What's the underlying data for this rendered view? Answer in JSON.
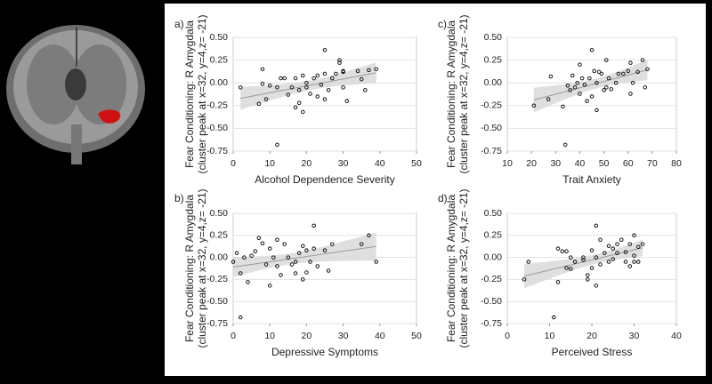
{
  "chart_data": [
    {
      "type": "scatter",
      "panel_label": "a)",
      "xlabel": "Alcohol  Dependence Severity",
      "ylabel": [
        "Fear Conditioning: R Amygdala",
        "(cluster peak at x=32, y=4,z= -21)"
      ],
      "x": [
        2,
        7,
        8,
        8,
        9,
        10,
        12,
        12,
        13,
        14,
        15,
        16,
        17,
        17,
        18,
        18,
        19,
        19,
        20,
        20,
        21,
        22,
        23,
        23,
        24,
        25,
        25,
        25,
        26,
        27,
        28,
        29,
        29,
        30,
        30,
        30,
        31,
        34,
        35,
        36,
        37,
        39
      ],
      "y": [
        -0.05,
        -0.23,
        0.15,
        -0.01,
        -0.18,
        -0.03,
        -0.68,
        -0.05,
        0.05,
        0.05,
        -0.13,
        -0.05,
        -0.27,
        0.05,
        -0.08,
        -0.22,
        -0.32,
        0.08,
        -0.05,
        0.0,
        -0.12,
        0.05,
        -0.15,
        0.08,
        -0.02,
        0.36,
        0.1,
        -0.18,
        -0.08,
        0.05,
        0.1,
        0.22,
        0.25,
        0.12,
        0.13,
        -0.05,
        -0.2,
        0.13,
        0.04,
        -0.08,
        0.14,
        0.15
      ],
      "xlim": [
        0,
        50
      ],
      "xticks": [
        0,
        10,
        20,
        30,
        40,
        50
      ],
      "ylim": [
        -0.75,
        0.5
      ],
      "yticks": [
        {
          "value": 0.5,
          "label": "0.50"
        },
        0.25,
        {
          "value": 0,
          "label": "0.00"
        },
        -0.25,
        {
          "value": -0.5,
          "label": "-0.50"
        },
        -0.75
      ],
      "color": "#000000",
      "grid": true
    },
    {
      "type": "scatter",
      "panel_label": "c)",
      "xlabel": "Trait Anxiety",
      "ylabel": [
        "Fear Conditioning: R Amygdala",
        "(cluster peak at x=32, y=4,z= -21)"
      ],
      "x": [
        21,
        27,
        28,
        33,
        34,
        35,
        36,
        37,
        38,
        39,
        40,
        40,
        41,
        42,
        43,
        44,
        45,
        45,
        46,
        47,
        47,
        48,
        49,
        50,
        51,
        51,
        52,
        53,
        55,
        56,
        58,
        60,
        61,
        61,
        62,
        64,
        66,
        67,
        68
      ],
      "y": [
        -0.25,
        -0.18,
        0.07,
        -0.26,
        -0.68,
        -0.03,
        -0.08,
        0.08,
        -0.05,
        0.0,
        0.2,
        -0.12,
        0.05,
        -0.02,
        -0.2,
        0.05,
        0.36,
        -0.15,
        0.13,
        0.0,
        -0.3,
        0.12,
        0.1,
        -0.08,
        0.25,
        -0.05,
        0.05,
        -0.07,
        0.0,
        0.1,
        0.1,
        0.13,
        0.22,
        -0.12,
        0.0,
        0.12,
        0.25,
        -0.05,
        0.15
      ],
      "xlim": [
        10,
        80
      ],
      "xticks": [
        10,
        20,
        30,
        40,
        50,
        60,
        70,
        80
      ],
      "ylim": [
        -0.75,
        0.5
      ],
      "yticks": [
        {
          "value": 0.5,
          "label": "0.50"
        },
        0.25,
        {
          "value": 0,
          "label": "0.00"
        },
        -0.25,
        {
          "value": -0.5,
          "label": "-0.50"
        },
        -0.75
      ],
      "color": "#000000",
      "grid": true
    },
    {
      "type": "scatter",
      "panel_label": "b)",
      "xlabel": "Depressive Symptoms",
      "ylabel": [
        "Fear Conditioning: R Amygdala",
        "(cluster peak at x=32, y=4,z= -21)"
      ],
      "x": [
        0,
        1,
        2,
        2,
        3,
        4,
        5,
        6,
        7,
        8,
        9,
        10,
        10,
        11,
        12,
        12,
        13,
        14,
        15,
        16,
        17,
        17,
        18,
        19,
        19,
        20,
        20,
        21,
        22,
        22,
        23,
        25,
        26,
        27,
        35,
        37,
        39
      ],
      "y": [
        -0.05,
        0.05,
        -0.68,
        -0.18,
        0.0,
        -0.28,
        0.02,
        0.07,
        0.22,
        0.16,
        -0.08,
        -0.32,
        0.1,
        0.0,
        0.2,
        -0.1,
        -0.2,
        0.15,
        0.0,
        -0.08,
        -0.18,
        -0.05,
        0.05,
        0.13,
        -0.25,
        0.08,
        -0.17,
        -0.05,
        0.36,
        0.1,
        -0.1,
        0.08,
        -0.15,
        0.15,
        0.15,
        0.25,
        -0.05
      ],
      "xlim": [
        0,
        50
      ],
      "xticks": [
        0,
        10,
        20,
        30,
        40,
        50
      ],
      "ylim": [
        -0.75,
        0.5
      ],
      "yticks": [
        {
          "value": 0.5,
          "label": "0.50"
        },
        0.25,
        {
          "value": 0,
          "label": "0.00"
        },
        -0.25,
        {
          "value": -0.5,
          "label": "-0.50"
        },
        -0.75
      ],
      "color": "#000000",
      "grid": true
    },
    {
      "type": "scatter",
      "panel_label": "d)",
      "xlabel": "Perceived Stress",
      "ylabel": [
        "Fear Conditioning: R Amygdala",
        "(cluster peak at x=32, y=4,z= -21)"
      ],
      "x": [
        4,
        5,
        11,
        12,
        12,
        13,
        14,
        14,
        15,
        15,
        16,
        18,
        18,
        19,
        19,
        20,
        20,
        21,
        21,
        21,
        22,
        22,
        23,
        24,
        24,
        25,
        25,
        26,
        26,
        27,
        28,
        28,
        29,
        29,
        30,
        30,
        31,
        31,
        32,
        30
      ],
      "y": [
        -0.25,
        -0.05,
        -0.68,
        0.1,
        -0.28,
        0.07,
        -0.12,
        0.07,
        0.0,
        -0.13,
        -0.05,
        -0.03,
        0.0,
        -0.2,
        -0.25,
        0.08,
        -0.12,
        0.36,
        0.0,
        -0.32,
        0.2,
        -0.08,
        0.05,
        -0.05,
        0.13,
        0.1,
        -0.02,
        0.15,
        0.05,
        0.2,
        0.06,
        -0.05,
        0.15,
        -0.1,
        0.02,
        0.25,
        0.12,
        -0.05,
        0.15,
        -0.05
      ],
      "xlim": [
        0,
        40
      ],
      "xticks": [
        0,
        10,
        20,
        30,
        40
      ],
      "ylim": [
        -0.75,
        0.5
      ],
      "yticks": [
        {
          "value": 0.5,
          "label": "0.50"
        },
        0.25,
        {
          "value": 0,
          "label": "0.00"
        },
        -0.25,
        {
          "value": -0.5,
          "label": "-0.50"
        },
        -0.75
      ],
      "color": "#000000",
      "grid": true
    }
  ]
}
